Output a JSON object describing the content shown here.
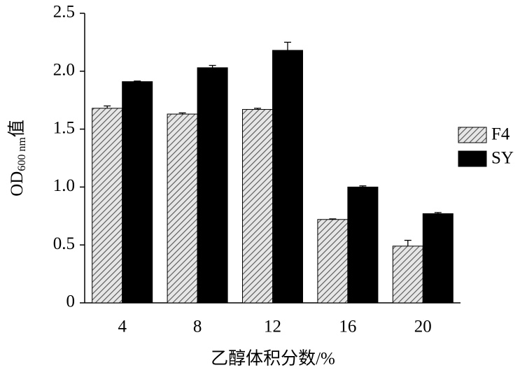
{
  "chart_data": {
    "type": "bar",
    "y_label": {
      "main": "OD",
      "sub": "600 nm",
      "suffix": "值"
    },
    "x_label": "乙醇体积分数/%",
    "categories": [
      "4",
      "8",
      "12",
      "16",
      "20"
    ],
    "series": [
      {
        "name": "F4",
        "color": "#7a7a7a",
        "pattern": "hatch",
        "values": [
          1.68,
          1.63,
          1.67,
          0.72,
          0.49
        ],
        "errors": [
          0.02,
          0.01,
          0.01,
          0.005,
          0.05
        ]
      },
      {
        "name": "SY",
        "color": "#000000",
        "pattern": "solid",
        "values": [
          1.91,
          2.03,
          2.18,
          1.0,
          0.77
        ],
        "errors": [
          0.005,
          0.02,
          0.07,
          0.01,
          0.01
        ]
      }
    ],
    "ylim": [
      0,
      2.5
    ],
    "yticks": [
      0,
      0.5,
      {
        "value": 1,
        "label": "1.0"
      },
      1.5,
      {
        "value": 2,
        "label": "2.0"
      },
      2.5
    ],
    "legend": "right"
  }
}
